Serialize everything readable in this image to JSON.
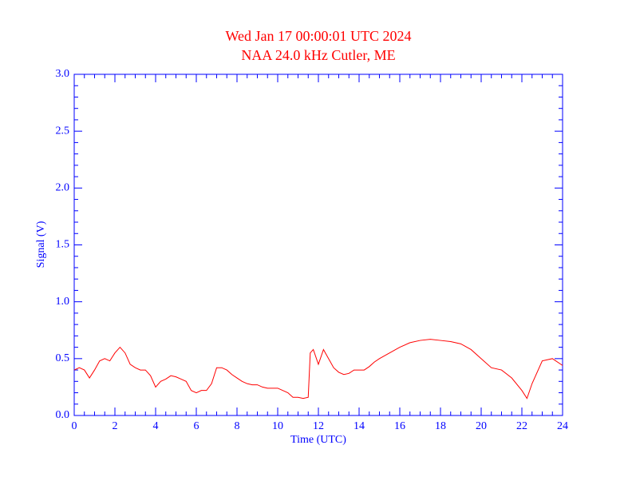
{
  "chart_data": {
    "type": "line",
    "title": "Wed Jan 17 00:00:01 UTC 2024",
    "subtitle": "NAA 24.0 kHz Cutler, ME",
    "x_label": "Time (UTC)",
    "y_label": "Signal (V)",
    "x": [
      0,
      0.25,
      0.5,
      0.75,
      1,
      1.25,
      1.5,
      1.75,
      2,
      2.25,
      2.5,
      2.75,
      3,
      3.25,
      3.5,
      3.75,
      4,
      4.25,
      4.5,
      4.75,
      5,
      5.25,
      5.5,
      5.75,
      6,
      6.25,
      6.5,
      6.75,
      7,
      7.25,
      7.5,
      7.75,
      8,
      8.25,
      8.5,
      8.75,
      9,
      9.25,
      9.5,
      9.75,
      10,
      10.25,
      10.5,
      10.75,
      11,
      11.25,
      11.5,
      11.6,
      11.75,
      12,
      12.25,
      12.5,
      12.75,
      13,
      13.25,
      13.5,
      13.75,
      14,
      14.25,
      14.5,
      14.75,
      15,
      15.5,
      16,
      16.5,
      17,
      17.5,
      18,
      18.5,
      19,
      19.5,
      20,
      20.5,
      21,
      21.5,
      22,
      22.25,
      22.5,
      23,
      23.5,
      24
    ],
    "series": [
      {
        "name": "Signal",
        "color": "#ff0000",
        "values": [
          0.4,
          0.42,
          0.4,
          0.33,
          0.4,
          0.48,
          0.5,
          0.48,
          0.55,
          0.6,
          0.55,
          0.45,
          0.42,
          0.4,
          0.4,
          0.35,
          0.25,
          0.3,
          0.32,
          0.35,
          0.34,
          0.32,
          0.3,
          0.22,
          0.2,
          0.22,
          0.22,
          0.28,
          0.42,
          0.42,
          0.4,
          0.36,
          0.33,
          0.3,
          0.28,
          0.27,
          0.27,
          0.25,
          0.24,
          0.24,
          0.24,
          0.22,
          0.2,
          0.16,
          0.16,
          0.15,
          0.16,
          0.55,
          0.58,
          0.45,
          0.58,
          0.5,
          0.42,
          0.38,
          0.36,
          0.37,
          0.4,
          0.4,
          0.4,
          0.43,
          0.47,
          0.5,
          0.55,
          0.6,
          0.64,
          0.66,
          0.67,
          0.66,
          0.65,
          0.63,
          0.58,
          0.5,
          0.42,
          0.4,
          0.33,
          0.22,
          0.15,
          0.28,
          0.48,
          0.5,
          0.44
        ]
      }
    ],
    "xlim": [
      0,
      24
    ],
    "xticks": [
      0,
      2,
      4,
      6,
      8,
      10,
      12,
      14,
      16,
      18,
      20,
      22,
      24
    ],
    "ylim": [
      0,
      3
    ],
    "yticks": [
      {
        "value": 0,
        "label": "0.0"
      },
      0.5,
      {
        "value": 1,
        "label": "1.0"
      },
      1.5,
      {
        "value": 2,
        "label": "2.0"
      },
      2.5,
      {
        "value": 3,
        "label": "3.0"
      }
    ],
    "axis_color": "#0000ff",
    "title_color": "#ff0000"
  }
}
